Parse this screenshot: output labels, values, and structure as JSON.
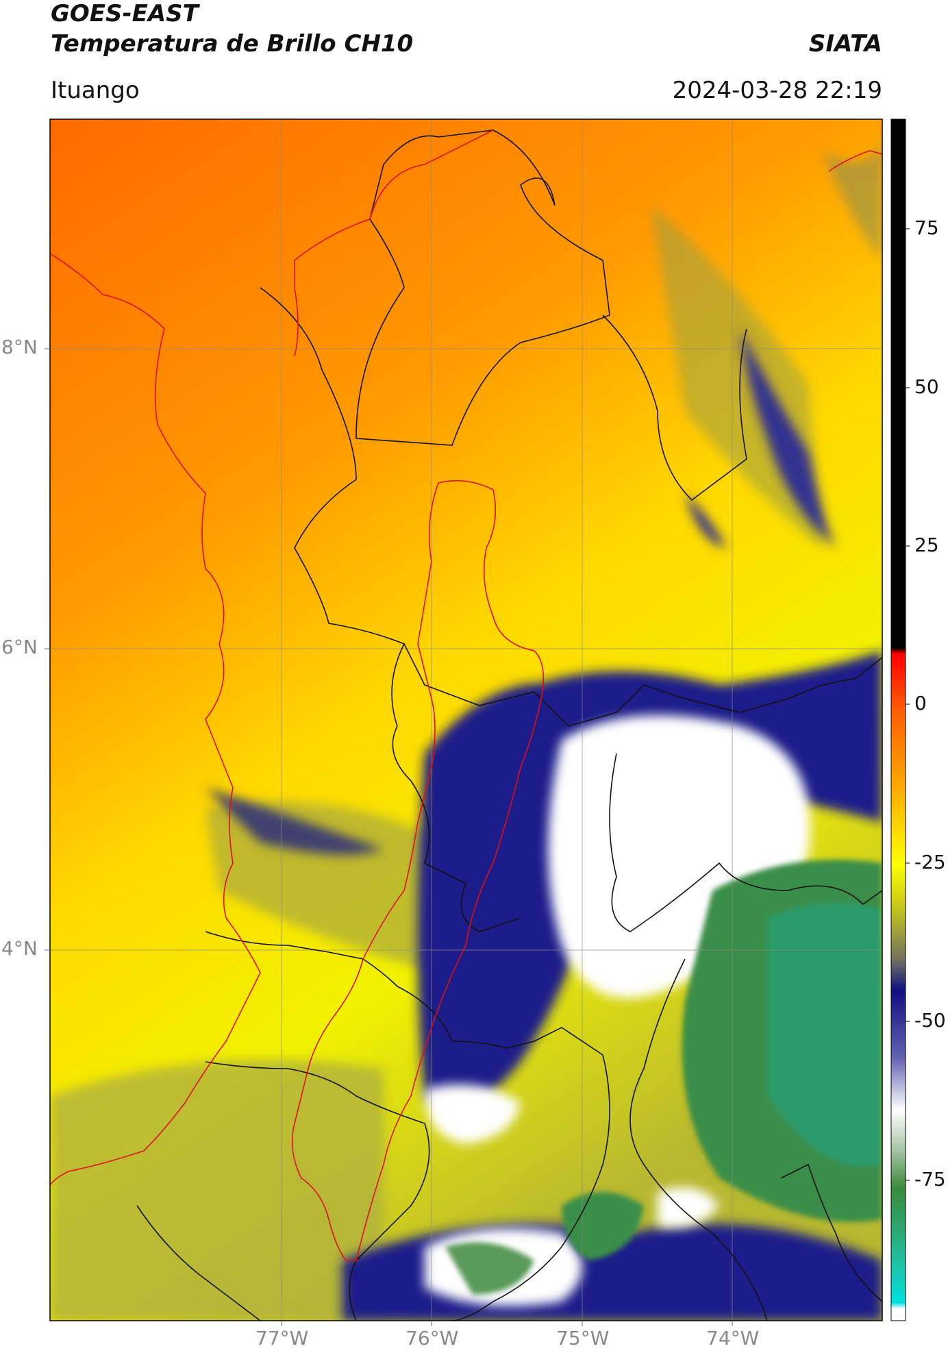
{
  "header": {
    "satellite": "GOES-EAST",
    "product": "Temperatura de Brillo CH10",
    "organization": "SIATA",
    "region": "Ituango",
    "datetime": "2024-03-28 22:19"
  },
  "map": {
    "lat_labels": [
      "8°N",
      "6°N",
      "4°N"
    ],
    "lon_labels": [
      "77°W",
      "76°W",
      "75°W",
      "74°W"
    ],
    "lat_range": [
      1.9,
      9.5
    ],
    "lon_range": [
      -78.6,
      -73.0
    ],
    "boundary_color": "#111111",
    "basin_color": "#e01010",
    "coast_color": "#e01010",
    "grid_color": "#999999"
  },
  "colorbar": {
    "ticks": [
      "75",
      "50",
      "25",
      "0",
      "-25",
      "-50",
      "-75"
    ],
    "range": [
      -93,
      92
    ],
    "palette": {
      "black_above": 8,
      "red": "#ff0000",
      "orange": "#ff7a00",
      "yellow": "#ffff00",
      "olive": "#9a9a30",
      "navy": "#101080",
      "white": "#ffffff",
      "green": "#2f8a3a",
      "teal": "#20c0a0",
      "cyan": "#00e0e0"
    }
  }
}
